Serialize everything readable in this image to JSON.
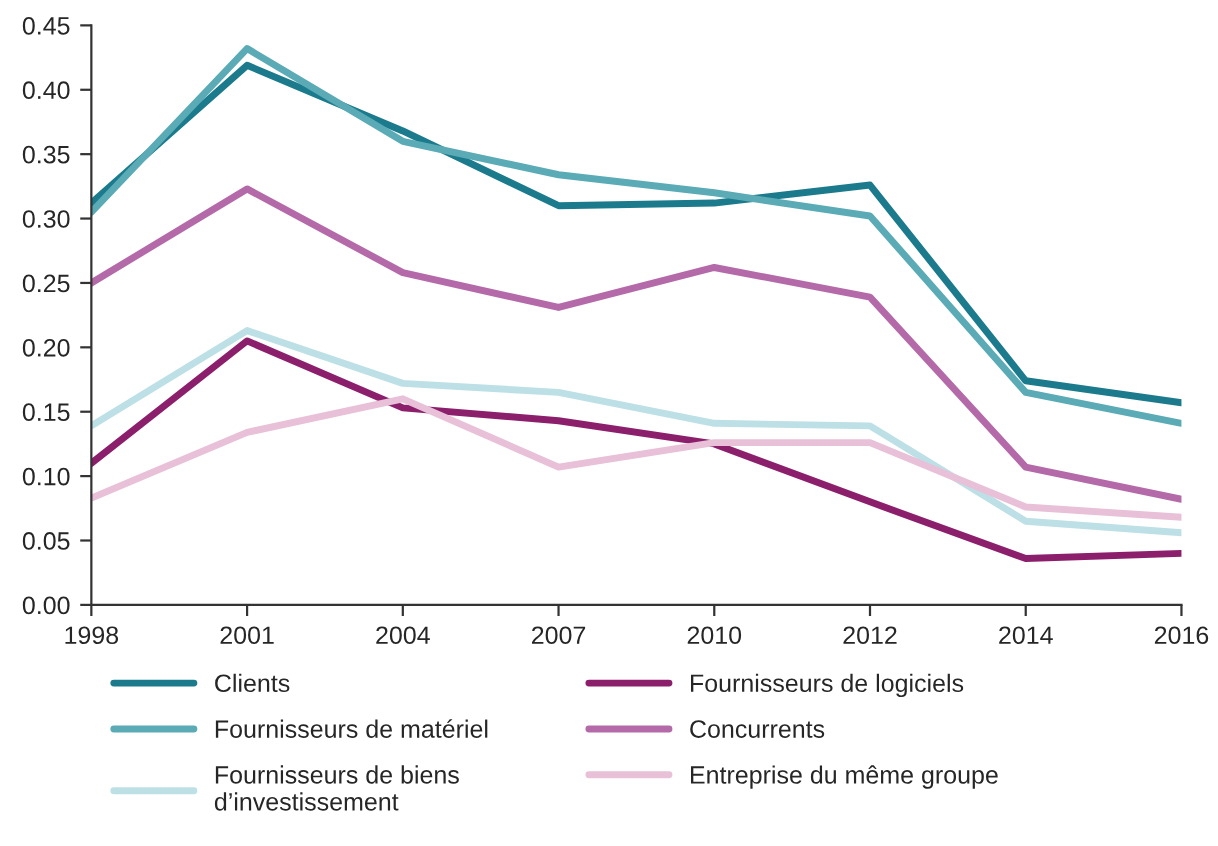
{
  "chart_data": {
    "type": "line",
    "categories": [
      "1998",
      "2001",
      "2004",
      "2007",
      "2010",
      "2012",
      "2014",
      "2016"
    ],
    "series": [
      {
        "name": "Clients",
        "color": "#1b7b8c",
        "values": [
          0.312,
          0.419,
          0.368,
          0.31,
          0.312,
          0.326,
          0.174,
          0.157
        ]
      },
      {
        "name": "Fournisseurs de matériel",
        "color": "#5aabb6",
        "values": [
          0.305,
          0.432,
          0.36,
          0.334,
          0.32,
          0.302,
          0.165,
          0.141
        ]
      },
      {
        "name": "Fournisseurs de biens\nd’investissement",
        "color": "#bde0e6",
        "values": [
          0.139,
          0.213,
          0.172,
          0.165,
          0.141,
          0.139,
          0.065,
          0.056
        ]
      },
      {
        "name": "Fournisseurs de logiciels",
        "color": "#8c1f6c",
        "values": [
          0.11,
          0.205,
          0.153,
          0.143,
          0.125,
          0.08,
          0.036,
          0.04
        ]
      },
      {
        "name": "Concurrents",
        "color": "#b46aa9",
        "values": [
          0.25,
          0.323,
          0.258,
          0.231,
          0.262,
          0.239,
          0.107,
          0.082
        ]
      },
      {
        "name": "Entreprise du même groupe",
        "color": "#e8c0d8",
        "values": [
          0.083,
          0.134,
          0.16,
          0.107,
          0.126,
          0.126,
          0.076,
          0.068
        ]
      }
    ],
    "ylim": [
      0,
      0.45
    ],
    "yticks": [
      {
        "value": 0,
        "label": "0.00"
      },
      {
        "value": 0.05,
        "label": "0.05"
      },
      {
        "value": 0.1,
        "label": "0.10"
      },
      {
        "value": 0.15,
        "label": "0.15"
      },
      {
        "value": 0.2,
        "label": "0.20"
      },
      {
        "value": 0.25,
        "label": "0.25"
      },
      {
        "value": 0.3,
        "label": "0.30"
      },
      {
        "value": 0.35,
        "label": "0.35"
      },
      {
        "value": 0.4,
        "label": "0.40"
      },
      {
        "value": 0.45,
        "label": "0.45"
      }
    ],
    "grid": false,
    "legend": "bottom",
    "line_style": "solid"
  }
}
